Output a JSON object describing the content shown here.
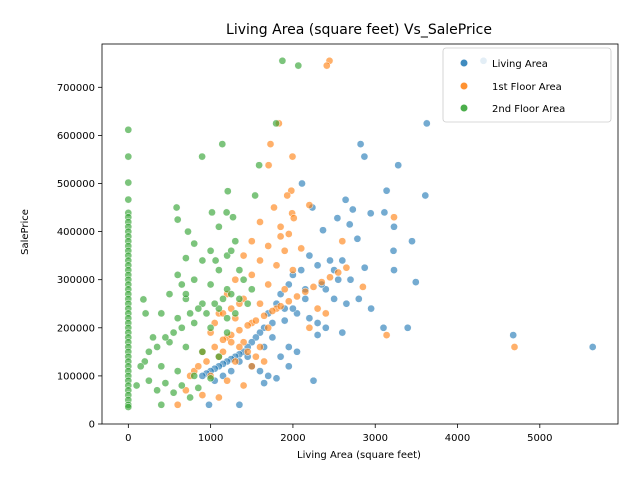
{
  "chart_data": {
    "type": "scatter",
    "title": "Living Area (square feet) Vs_SalePrice",
    "xlabel": "Living Area (square feet)",
    "ylabel": "SalePrice",
    "xlim": [
      -320,
      5950
    ],
    "ylim": [
      0,
      790000
    ],
    "xticks": [
      0,
      1000,
      2000,
      3000,
      4000,
      5000
    ],
    "yticks": [
      0,
      100000,
      200000,
      300000,
      400000,
      500000,
      600000,
      700000
    ],
    "legend_position": "top-right",
    "grid": false,
    "series": [
      {
        "name": "Living Area",
        "color": "#1f77b4",
        "points": [
          [
            4316,
            755000
          ],
          [
            3627,
            625000
          ],
          [
            2822,
            582000
          ],
          [
            2868,
            556000
          ],
          [
            3279,
            538000
          ],
          [
            3138,
            485000
          ],
          [
            3608,
            475000
          ],
          [
            2110,
            500000
          ],
          [
            2640,
            466000
          ],
          [
            2236,
            450000
          ],
          [
            2945,
            438000
          ],
          [
            3112,
            440000
          ],
          [
            2728,
            446000
          ],
          [
            2540,
            428000
          ],
          [
            2690,
            415000
          ],
          [
            3447,
            380000
          ],
          [
            3228,
            410000
          ],
          [
            2365,
            403000
          ],
          [
            2784,
            385000
          ],
          [
            3222,
            360000
          ],
          [
            2872,
            325000
          ],
          [
            3493,
            295000
          ],
          [
            3228,
            320000
          ],
          [
            2200,
            350000
          ],
          [
            2450,
            340000
          ],
          [
            2300,
            330000
          ],
          [
            2600,
            340000
          ],
          [
            2700,
            300000
          ],
          [
            2100,
            320000
          ],
          [
            2000,
            310000
          ],
          [
            2800,
            260000
          ],
          [
            2950,
            240000
          ],
          [
            3100,
            200000
          ],
          [
            3395,
            200000
          ],
          [
            2400,
            280000
          ],
          [
            2500,
            260000
          ],
          [
            2650,
            250000
          ],
          [
            2150,
            280000
          ],
          [
            1950,
            290000
          ],
          [
            1850,
            270000
          ],
          [
            1800,
            250000
          ],
          [
            1900,
            240000
          ],
          [
            2050,
            230000
          ],
          [
            2200,
            220000
          ],
          [
            2300,
            210000
          ],
          [
            2400,
            200000
          ],
          [
            2600,
            190000
          ],
          [
            1700,
            230000
          ],
          [
            1750,
            210000
          ],
          [
            1650,
            200000
          ],
          [
            1600,
            190000
          ],
          [
            1550,
            180000
          ],
          [
            1500,
            170000
          ],
          [
            1450,
            160000
          ],
          [
            1400,
            150000
          ],
          [
            1350,
            145000
          ],
          [
            1300,
            140000
          ],
          [
            1250,
            135000
          ],
          [
            1200,
            130000
          ],
          [
            1150,
            125000
          ],
          [
            1100,
            120000
          ],
          [
            1050,
            115000
          ],
          [
            1000,
            110000
          ],
          [
            950,
            105000
          ],
          [
            900,
            100000
          ],
          [
            1950,
            160000
          ],
          [
            2050,
            150000
          ],
          [
            1850,
            140000
          ],
          [
            1500,
            120000
          ],
          [
            1600,
            110000
          ],
          [
            1700,
            100000
          ],
          [
            1800,
            95000
          ],
          [
            2250,
            90000
          ],
          [
            1950,
            120000
          ],
          [
            2300,
            185000
          ],
          [
            2500,
            320000
          ],
          [
            2550,
            300000
          ],
          [
            2350,
            290000
          ],
          [
            2150,
            260000
          ],
          [
            2000,
            240000
          ],
          [
            1900,
            215000
          ],
          [
            1750,
            180000
          ],
          [
            1650,
            160000
          ],
          [
            1450,
            140000
          ],
          [
            1350,
            130000
          ],
          [
            1250,
            110000
          ],
          [
            1150,
            100000
          ],
          [
            1050,
            90000
          ],
          [
            1650,
            85000
          ],
          [
            1350,
            40000
          ],
          [
            980,
            40000
          ],
          [
            4676,
            184750
          ],
          [
            5642,
            160000
          ]
        ]
      },
      {
        "name": "1st Floor Area",
        "color": "#ff7f0e",
        "points": [
          [
            2444,
            755000
          ],
          [
            2411,
            745000
          ],
          [
            1830,
            625000
          ],
          [
            1728,
            582000
          ],
          [
            1995,
            556000
          ],
          [
            1704,
            538000
          ],
          [
            1980,
            485000
          ],
          [
            1930,
            475000
          ],
          [
            2200,
            455000
          ],
          [
            1770,
            450000
          ],
          [
            1990,
            438000
          ],
          [
            2010,
            428000
          ],
          [
            1600,
            420000
          ],
          [
            1850,
            410000
          ],
          [
            1950,
            395000
          ],
          [
            1500,
            380000
          ],
          [
            1700,
            370000
          ],
          [
            1400,
            350000
          ],
          [
            1600,
            340000
          ],
          [
            1800,
            330000
          ],
          [
            2000,
            320000
          ],
          [
            1500,
            310000
          ],
          [
            1300,
            300000
          ],
          [
            1700,
            290000
          ],
          [
            1900,
            280000
          ],
          [
            1200,
            270000
          ],
          [
            1400,
            260000
          ],
          [
            1600,
            250000
          ],
          [
            1800,
            240000
          ],
          [
            1100,
            230000
          ],
          [
            1300,
            220000
          ],
          [
            1500,
            210000
          ],
          [
            1700,
            200000
          ],
          [
            1000,
            190000
          ],
          [
            1200,
            180000
          ],
          [
            1400,
            170000
          ],
          [
            1600,
            160000
          ],
          [
            900,
            150000
          ],
          [
            1100,
            140000
          ],
          [
            1300,
            130000
          ],
          [
            1500,
            120000
          ],
          [
            800,
            110000
          ],
          [
            1000,
            100000
          ],
          [
            1200,
            90000
          ],
          [
            1400,
            80000
          ],
          [
            700,
            70000
          ],
          [
            900,
            60000
          ],
          [
            1100,
            55000
          ],
          [
            600,
            40000
          ],
          [
            1050,
            160000
          ],
          [
            1150,
            175000
          ],
          [
            1250,
            185000
          ],
          [
            1350,
            195000
          ],
          [
            1450,
            205000
          ],
          [
            1550,
            215000
          ],
          [
            1650,
            225000
          ],
          [
            1750,
            235000
          ],
          [
            1850,
            245000
          ],
          [
            1950,
            255000
          ],
          [
            2050,
            265000
          ],
          [
            2150,
            275000
          ],
          [
            2250,
            285000
          ],
          [
            2350,
            295000
          ],
          [
            2450,
            305000
          ],
          [
            2550,
            315000
          ],
          [
            2650,
            325000
          ],
          [
            2300,
            240000
          ],
          [
            2400,
            230000
          ],
          [
            2200,
            200000
          ],
          [
            2600,
            380000
          ],
          [
            2850,
            285000
          ],
          [
            3138,
            184750
          ],
          [
            3228,
            430000
          ],
          [
            2100,
            365000
          ],
          [
            1850,
            390000
          ],
          [
            1900,
            360000
          ],
          [
            4692,
            160000
          ],
          [
            1650,
            130000
          ],
          [
            1550,
            140000
          ],
          [
            1450,
            150000
          ],
          [
            1350,
            160000
          ],
          [
            1250,
            170000
          ],
          [
            1150,
            150000
          ],
          [
            950,
            130000
          ],
          [
            850,
            120000
          ],
          [
            750,
            100000
          ],
          [
            1050,
            210000
          ],
          [
            1150,
            230000
          ],
          [
            1250,
            240000
          ],
          [
            1350,
            250000
          ]
        ]
      },
      {
        "name": "2nd Floor Area",
        "color": "#2ca02c",
        "points": [
          [
            1872,
            755000
          ],
          [
            2065,
            745000
          ],
          [
            1796,
            625000
          ],
          [
            0,
            611657
          ],
          [
            1142,
            582000
          ],
          [
            0,
            556000
          ],
          [
            896,
            556000
          ],
          [
            1589,
            538000
          ],
          [
            0,
            501837
          ],
          [
            0,
            466500
          ],
          [
            0,
            438780
          ],
          [
            0,
            430000
          ],
          [
            0,
            420000
          ],
          [
            0,
            410000
          ],
          [
            0,
            400000
          ],
          [
            0,
            390000
          ],
          [
            0,
            380000
          ],
          [
            0,
            370000
          ],
          [
            0,
            360000
          ],
          [
            0,
            350000
          ],
          [
            0,
            340000
          ],
          [
            0,
            330000
          ],
          [
            0,
            320000
          ],
          [
            0,
            310000
          ],
          [
            0,
            300000
          ],
          [
            0,
            290000
          ],
          [
            0,
            280000
          ],
          [
            0,
            270000
          ],
          [
            0,
            260000
          ],
          [
            0,
            250000
          ],
          [
            0,
            240000
          ],
          [
            0,
            230000
          ],
          [
            0,
            220000
          ],
          [
            0,
            210000
          ],
          [
            0,
            200000
          ],
          [
            0,
            190000
          ],
          [
            0,
            180000
          ],
          [
            0,
            170000
          ],
          [
            0,
            160000
          ],
          [
            0,
            150000
          ],
          [
            0,
            140000
          ],
          [
            0,
            130000
          ],
          [
            0,
            120000
          ],
          [
            0,
            110000
          ],
          [
            0,
            100000
          ],
          [
            0,
            90000
          ],
          [
            0,
            80000
          ],
          [
            0,
            70000
          ],
          [
            0,
            60000
          ],
          [
            0,
            50000
          ],
          [
            0,
            40000
          ],
          [
            0,
            35311
          ],
          [
            1209,
            484000
          ],
          [
            1540,
            475000
          ],
          [
            586,
            450000
          ],
          [
            1194,
            440000
          ],
          [
            1017,
            440000
          ],
          [
            1272,
            430000
          ],
          [
            600,
            425000
          ],
          [
            725,
            400000
          ],
          [
            1100,
            410000
          ],
          [
            1300,
            380000
          ],
          [
            800,
            375000
          ],
          [
            1000,
            360000
          ],
          [
            1200,
            350000
          ],
          [
            700,
            345000
          ],
          [
            900,
            340000
          ],
          [
            1100,
            320000
          ],
          [
            600,
            310000
          ],
          [
            800,
            300000
          ],
          [
            1000,
            290000
          ],
          [
            1200,
            280000
          ],
          [
            500,
            270000
          ],
          [
            700,
            260000
          ],
          [
            900,
            250000
          ],
          [
            1100,
            240000
          ],
          [
            400,
            230000
          ],
          [
            600,
            220000
          ],
          [
            800,
            210000
          ],
          [
            1000,
            200000
          ],
          [
            1200,
            190000
          ],
          [
            300,
            180000
          ],
          [
            500,
            170000
          ],
          [
            700,
            160000
          ],
          [
            900,
            150000
          ],
          [
            1100,
            140000
          ],
          [
            200,
            130000
          ],
          [
            400,
            120000
          ],
          [
            600,
            110000
          ],
          [
            800,
            100000
          ],
          [
            1000,
            95000
          ],
          [
            250,
            90000
          ],
          [
            450,
            85000
          ],
          [
            650,
            80000
          ],
          [
            850,
            75000
          ],
          [
            100,
            80000
          ],
          [
            350,
            70000
          ],
          [
            550,
            65000
          ],
          [
            750,
            55000
          ],
          [
            400,
            40000
          ],
          [
            183,
            259000
          ],
          [
            210,
            230000
          ],
          [
            1050,
            250000
          ],
          [
            1150,
            260000
          ],
          [
            1250,
            270000
          ],
          [
            1350,
            260000
          ],
          [
            1450,
            250000
          ],
          [
            1300,
            230000
          ],
          [
            1200,
            220000
          ],
          [
            950,
            230000
          ],
          [
            850,
            240000
          ],
          [
            750,
            230000
          ],
          [
            650,
            200000
          ],
          [
            550,
            190000
          ],
          [
            450,
            180000
          ],
          [
            350,
            160000
          ],
          [
            250,
            150000
          ],
          [
            150,
            120000
          ],
          [
            1060,
            340000
          ],
          [
            1400,
            300000
          ],
          [
            1500,
            280000
          ],
          [
            1350,
            320000
          ],
          [
            1250,
            360000
          ],
          [
            700,
            270000
          ],
          [
            650,
            290000
          ]
        ]
      }
    ]
  }
}
